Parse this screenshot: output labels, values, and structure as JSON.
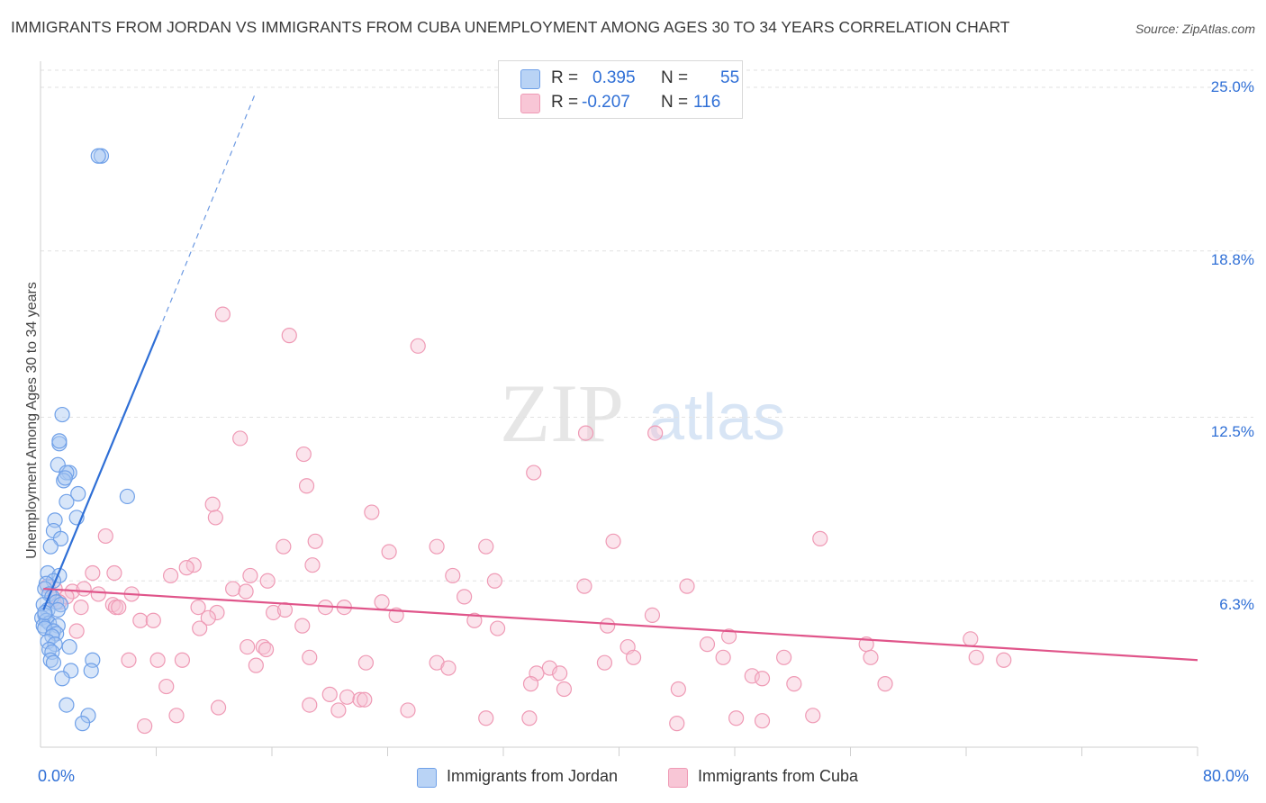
{
  "chart_data": {
    "type": "scatter",
    "title": "IMMIGRANTS FROM JORDAN VS IMMIGRANTS FROM CUBA UNEMPLOYMENT AMONG AGES 30 TO 34 YEARS CORRELATION CHART",
    "source": "Source: ZipAtlas.com",
    "watermark": "ZIPatlas",
    "xlabel": "",
    "ylabel": "Unemployment Among Ages 30 to 34 years",
    "xlim": [
      0,
      80
    ],
    "ylim": [
      0,
      26.5
    ],
    "x_tick_labels": [
      "0.0%",
      "80.0%"
    ],
    "y_ticks": [
      6.3,
      12.5,
      18.8,
      25.0
    ],
    "y_tick_labels": [
      "6.3%",
      "12.5%",
      "18.8%",
      "25.0%"
    ],
    "grid": true,
    "legend_position": "top-center",
    "series": [
      {
        "name": "Immigrants from Jordan",
        "color": "#6fa0e8",
        "fill": "#a9c8f2",
        "line_color": "#2f6fd6",
        "R": "0.395",
        "N": "55",
        "trend": {
          "x0": 0.2,
          "y0": 5.2,
          "x1": 8.2,
          "y1": 15.8,
          "dash_to_x": 14.8,
          "dash_to_y": 24.7
        },
        "points": [
          [
            4.2,
            22.4
          ],
          [
            4.0,
            22.4
          ],
          [
            1.5,
            12.6
          ],
          [
            1.3,
            11.5
          ],
          [
            1.2,
            10.7
          ],
          [
            2.0,
            10.4
          ],
          [
            1.8,
            10.4
          ],
          [
            1.6,
            10.1
          ],
          [
            1.7,
            10.2
          ],
          [
            1.3,
            11.6
          ],
          [
            2.6,
            9.6
          ],
          [
            6.0,
            9.5
          ],
          [
            1.8,
            9.3
          ],
          [
            2.5,
            8.7
          ],
          [
            1.0,
            8.6
          ],
          [
            0.9,
            8.2
          ],
          [
            1.4,
            7.9
          ],
          [
            0.7,
            7.6
          ],
          [
            0.5,
            6.6
          ],
          [
            1.3,
            6.5
          ],
          [
            0.9,
            6.3
          ],
          [
            0.4,
            6.2
          ],
          [
            0.3,
            6.0
          ],
          [
            0.6,
            5.8
          ],
          [
            0.8,
            5.7
          ],
          [
            1.1,
            5.5
          ],
          [
            1.4,
            5.4
          ],
          [
            0.2,
            5.4
          ],
          [
            0.5,
            5.2
          ],
          [
            1.2,
            5.2
          ],
          [
            0.3,
            5.0
          ],
          [
            0.1,
            4.9
          ],
          [
            0.4,
            4.8
          ],
          [
            0.6,
            4.7
          ],
          [
            0.2,
            4.6
          ],
          [
            1.2,
            4.6
          ],
          [
            0.3,
            4.5
          ],
          [
            0.9,
            4.4
          ],
          [
            1.1,
            4.3
          ],
          [
            0.8,
            4.2
          ],
          [
            0.5,
            4.0
          ],
          [
            1.0,
            3.9
          ],
          [
            2.0,
            3.8
          ],
          [
            0.6,
            3.7
          ],
          [
            0.8,
            3.6
          ],
          [
            0.7,
            3.3
          ],
          [
            0.9,
            3.2
          ],
          [
            3.6,
            3.3
          ],
          [
            2.1,
            2.9
          ],
          [
            3.5,
            2.9
          ],
          [
            1.5,
            2.6
          ],
          [
            1.8,
            1.6
          ],
          [
            3.3,
            1.2
          ],
          [
            2.9,
            0.9
          ],
          [
            0.3,
            5.1
          ]
        ]
      },
      {
        "name": "Immigrants from Cuba",
        "color": "#ef9ab5",
        "fill": "#f7c3d4",
        "line_color": "#e0558a",
        "R": "-0.207",
        "N": "116",
        "trend": {
          "x0": 0.2,
          "y0": 6.0,
          "x1": 80,
          "y1": 3.3
        },
        "points": [
          [
            12.6,
            16.4
          ],
          [
            17.2,
            15.6
          ],
          [
            26.1,
            15.2
          ],
          [
            13.8,
            11.7
          ],
          [
            18.2,
            11.1
          ],
          [
            37.7,
            11.9
          ],
          [
            42.5,
            11.9
          ],
          [
            34.1,
            10.4
          ],
          [
            18.4,
            9.9
          ],
          [
            11.9,
            9.2
          ],
          [
            12.1,
            8.7
          ],
          [
            22.9,
            8.9
          ],
          [
            4.5,
            8.0
          ],
          [
            16.8,
            7.6
          ],
          [
            19.0,
            7.8
          ],
          [
            24.1,
            7.4
          ],
          [
            27.4,
            7.6
          ],
          [
            30.8,
            7.6
          ],
          [
            39.6,
            7.8
          ],
          [
            53.9,
            7.9
          ],
          [
            10.6,
            6.9
          ],
          [
            10.1,
            6.8
          ],
          [
            18.8,
            6.9
          ],
          [
            3.6,
            6.6
          ],
          [
            5.1,
            6.6
          ],
          [
            9.0,
            6.5
          ],
          [
            14.5,
            6.5
          ],
          [
            15.7,
            6.3
          ],
          [
            28.5,
            6.5
          ],
          [
            31.4,
            6.3
          ],
          [
            0.5,
            6.1
          ],
          [
            1.0,
            6.0
          ],
          [
            2.2,
            5.9
          ],
          [
            3.0,
            6.0
          ],
          [
            4.0,
            5.8
          ],
          [
            6.3,
            5.8
          ],
          [
            13.3,
            6.0
          ],
          [
            14.2,
            5.9
          ],
          [
            1.8,
            5.7
          ],
          [
            0.9,
            5.6
          ],
          [
            1.3,
            5.5
          ],
          [
            2.8,
            5.3
          ],
          [
            5.0,
            5.4
          ],
          [
            5.2,
            5.3
          ],
          [
            5.4,
            5.3
          ],
          [
            10.9,
            5.3
          ],
          [
            12.2,
            5.1
          ],
          [
            16.1,
            5.1
          ],
          [
            16.9,
            5.2
          ],
          [
            19.7,
            5.3
          ],
          [
            21.0,
            5.3
          ],
          [
            23.6,
            5.5
          ],
          [
            24.6,
            5.0
          ],
          [
            29.3,
            5.7
          ],
          [
            37.6,
            6.1
          ],
          [
            44.7,
            6.1
          ],
          [
            6.9,
            4.8
          ],
          [
            7.8,
            4.8
          ],
          [
            11.6,
            4.9
          ],
          [
            2.5,
            4.4
          ],
          [
            11.0,
            4.5
          ],
          [
            18.1,
            4.6
          ],
          [
            30.0,
            4.8
          ],
          [
            31.6,
            4.5
          ],
          [
            39.2,
            4.6
          ],
          [
            42.3,
            5.0
          ],
          [
            47.6,
            4.2
          ],
          [
            14.3,
            3.8
          ],
          [
            15.4,
            3.8
          ],
          [
            15.6,
            3.7
          ],
          [
            40.6,
            3.8
          ],
          [
            46.1,
            3.9
          ],
          [
            57.1,
            3.9
          ],
          [
            64.3,
            4.1
          ],
          [
            6.1,
            3.3
          ],
          [
            8.1,
            3.3
          ],
          [
            9.8,
            3.3
          ],
          [
            14.9,
            3.1
          ],
          [
            18.6,
            3.4
          ],
          [
            22.5,
            3.2
          ],
          [
            27.4,
            3.2
          ],
          [
            28.2,
            3.0
          ],
          [
            35.2,
            3.0
          ],
          [
            39.0,
            3.2
          ],
          [
            41.0,
            3.4
          ],
          [
            47.2,
            3.4
          ],
          [
            51.4,
            3.4
          ],
          [
            57.4,
            3.4
          ],
          [
            64.7,
            3.4
          ],
          [
            66.6,
            3.3
          ],
          [
            34.3,
            2.8
          ],
          [
            35.9,
            2.8
          ],
          [
            49.2,
            2.7
          ],
          [
            49.9,
            2.6
          ],
          [
            52.1,
            2.4
          ],
          [
            58.4,
            2.4
          ],
          [
            8.7,
            2.3
          ],
          [
            33.9,
            2.4
          ],
          [
            36.2,
            2.2
          ],
          [
            44.1,
            2.2
          ],
          [
            20.0,
            2.0
          ],
          [
            21.2,
            1.9
          ],
          [
            22.1,
            1.8
          ],
          [
            22.4,
            1.8
          ],
          [
            18.6,
            1.6
          ],
          [
            12.3,
            1.5
          ],
          [
            20.6,
            1.4
          ],
          [
            25.4,
            1.4
          ],
          [
            30.8,
            1.1
          ],
          [
            49.9,
            1.0
          ],
          [
            48.1,
            1.1
          ],
          [
            7.2,
            0.8
          ],
          [
            33.8,
            1.1
          ],
          [
            44.0,
            0.9
          ],
          [
            9.4,
            1.2
          ],
          [
            53.4,
            1.2
          ]
        ]
      }
    ]
  },
  "legend": {
    "r_label": "R =",
    "n_label": "N =",
    "jordan_r": "0.395",
    "jordan_n": "55",
    "cuba_r": "-0.207",
    "cuba_n": "116"
  },
  "bottom_legend": {
    "jordan": "Immigrants from Jordan",
    "cuba": "Immigrants from Cuba"
  }
}
